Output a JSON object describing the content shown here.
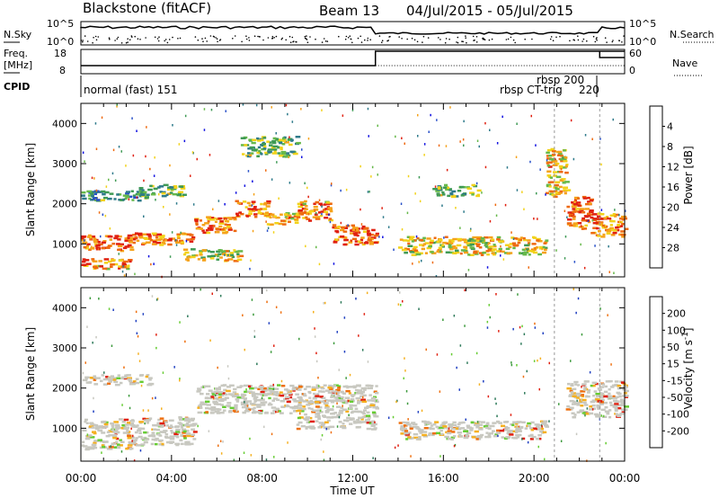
{
  "header": {
    "site": "Blackstone (fitACF)",
    "beam": "Beam 13",
    "date_range": "04/Jul/2015 - 05/Jul/2015"
  },
  "top_panels": {
    "nsky_label": "N.Sky",
    "nsky_ticks": [
      "10^5",
      "10^0"
    ],
    "nsearch_label": "N.Search",
    "nsearch_ticks": [
      "10^5",
      "10^0"
    ],
    "freq_label": "Freq.",
    "freq_unit": "[MHz]",
    "freq_ticks": [
      "18",
      "8"
    ],
    "nave_label": "Nave",
    "nave_ticks": [
      "60",
      "0"
    ],
    "cpid_label": "CPID",
    "cpid_entries": [
      {
        "label": "normal (fast) 151",
        "start_hour": 0
      },
      {
        "label": "rbsp 200",
        "start_hour": 20.9
      },
      {
        "label": "rbsp CT-trig",
        "start_hour": 20.9
      },
      {
        "label": "220",
        "start_hour": 22.9
      }
    ],
    "freq_step_hour": 13.0,
    "nave_step_hour": 22.9
  },
  "chart_data": [
    {
      "type": "heatmap",
      "name": "power",
      "ylabel": "Slant Range [km]",
      "yticks": [
        "1000",
        "2000",
        "3000",
        "4000"
      ],
      "ylim": [
        180,
        4500
      ],
      "xlim": [
        0,
        24
      ],
      "colorbar_label": "Power [dB]",
      "colorbar_ticks": [
        "4",
        "8",
        "12",
        "16",
        "20",
        "24",
        "28"
      ],
      "colorbar_colors": [
        "#1010e0",
        "#2850c8",
        "#2e7a8a",
        "#3f9a55",
        "#66b84a",
        "#f2d21a",
        "#f5a21a",
        "#ee6a10",
        "#e02010"
      ],
      "echo_bands": [
        {
          "t0": 0.0,
          "t1": 2.2,
          "r0": 850,
          "r1": 1250,
          "level": 0.9
        },
        {
          "t0": 0.0,
          "t1": 2.2,
          "r0": 400,
          "r1": 650,
          "level": 0.8
        },
        {
          "t0": 0.0,
          "t1": 3.0,
          "r0": 2100,
          "r1": 2350,
          "level": 0.35
        },
        {
          "t0": 2.2,
          "t1": 5.0,
          "r0": 1000,
          "r1": 1300,
          "level": 0.85
        },
        {
          "t0": 2.5,
          "t1": 4.5,
          "r0": 2200,
          "r1": 2500,
          "level": 0.45
        },
        {
          "t0": 5.0,
          "t1": 6.8,
          "r0": 1300,
          "r1": 1700,
          "level": 0.85
        },
        {
          "t0": 6.8,
          "t1": 8.2,
          "r0": 1700,
          "r1": 2100,
          "level": 0.8
        },
        {
          "t0": 8.2,
          "t1": 9.5,
          "r0": 1500,
          "r1": 1800,
          "level": 0.7
        },
        {
          "t0": 9.5,
          "t1": 11.0,
          "r0": 1600,
          "r1": 2100,
          "level": 0.8
        },
        {
          "t0": 11.0,
          "t1": 13.0,
          "r0": 1000,
          "r1": 1500,
          "level": 0.85
        },
        {
          "t0": 7.0,
          "t1": 9.5,
          "r0": 3200,
          "r1": 3700,
          "level": 0.45
        },
        {
          "t0": 4.5,
          "t1": 7.0,
          "r0": 600,
          "r1": 900,
          "level": 0.6
        },
        {
          "t0": 14.0,
          "t1": 20.5,
          "r0": 750,
          "r1": 1200,
          "level": 0.65
        },
        {
          "t0": 15.5,
          "t1": 17.5,
          "r0": 2200,
          "r1": 2500,
          "level": 0.45
        },
        {
          "t0": 20.5,
          "t1": 21.4,
          "r0": 2200,
          "r1": 3400,
          "level": 0.7
        },
        {
          "t0": 21.4,
          "t1": 22.5,
          "r0": 1400,
          "r1": 2200,
          "level": 0.9
        },
        {
          "t0": 22.5,
          "t1": 24.0,
          "r0": 1200,
          "r1": 1800,
          "level": 0.8
        }
      ]
    },
    {
      "type": "heatmap",
      "name": "velocity",
      "ylabel": "Slant Range [km]",
      "yticks": [
        "1000",
        "2000",
        "3000",
        "4000"
      ],
      "ylim": [
        180,
        4500
      ],
      "xlim": [
        0,
        24
      ],
      "xlabel": "Time UT",
      "xticks": [
        "00:00",
        "04:00",
        "08:00",
        "12:00",
        "16:00",
        "20:00",
        "00:00"
      ],
      "colorbar_label": "Velocity [m s",
      "colorbar_label_sup": "-1",
      "colorbar_label_end": "]",
      "colorbar_ticks": [
        "200",
        "100",
        "50",
        "15",
        "-15",
        "-50",
        "-100",
        "-200"
      ],
      "colorbar_colors": [
        "#2040c0",
        "#2e7a5a",
        "#3c9a3c",
        "#66cc33",
        "#c8c8c0",
        "#f5b020",
        "#ee7010",
        "#e02010"
      ],
      "echo_bands": [
        {
          "t0": 0.0,
          "t1": 2.2,
          "r0": 500,
          "r1": 1250,
          "level": 0.5
        },
        {
          "t0": 2.2,
          "t1": 5.0,
          "r0": 600,
          "r1": 1300,
          "level": 0.5
        },
        {
          "t0": 0.0,
          "t1": 3.0,
          "r0": 2100,
          "r1": 2350,
          "level": 0.5
        },
        {
          "t0": 5.0,
          "t1": 9.5,
          "r0": 1400,
          "r1": 2100,
          "level": 0.5
        },
        {
          "t0": 9.5,
          "t1": 13.0,
          "r0": 1000,
          "r1": 2100,
          "level": 0.5
        },
        {
          "t0": 14.0,
          "t1": 20.5,
          "r0": 750,
          "r1": 1200,
          "level": 0.5
        },
        {
          "t0": 21.4,
          "t1": 24.0,
          "r0": 1300,
          "r1": 2200,
          "level": 0.5
        }
      ]
    }
  ]
}
